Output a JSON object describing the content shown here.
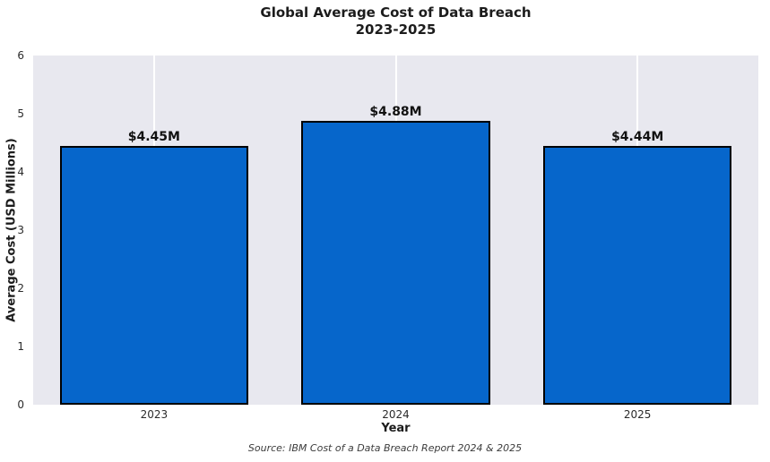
{
  "title": {
    "line1": "Global Average Cost of Data Breach",
    "line2": "2023-2025"
  },
  "source_note": "Source: IBM Cost of a Data Breach Report 2024 & 2025",
  "chart_data": {
    "type": "bar",
    "title": "Global Average Cost of Data Breach 2023-2025",
    "categories": [
      "2023",
      "2024",
      "2025"
    ],
    "values": [
      4.45,
      4.88,
      4.44
    ],
    "bar_labels": [
      "$4.45M",
      "$4.88M",
      "$4.44M"
    ],
    "xlabel": "Year",
    "ylabel": "Average Cost (USD Millions)",
    "ylim": [
      0,
      6
    ],
    "yticks": [
      0,
      1,
      2,
      3,
      4,
      5,
      6
    ],
    "legend": "none",
    "grid": "vertical-white-lines-at-category-centers",
    "colors": {
      "bar_fill": "#0666cb",
      "bar_edge": "#000000",
      "plot_background": "#e8e8ef",
      "gridline": "#ffffff",
      "figure_background": "#ffffff"
    }
  }
}
